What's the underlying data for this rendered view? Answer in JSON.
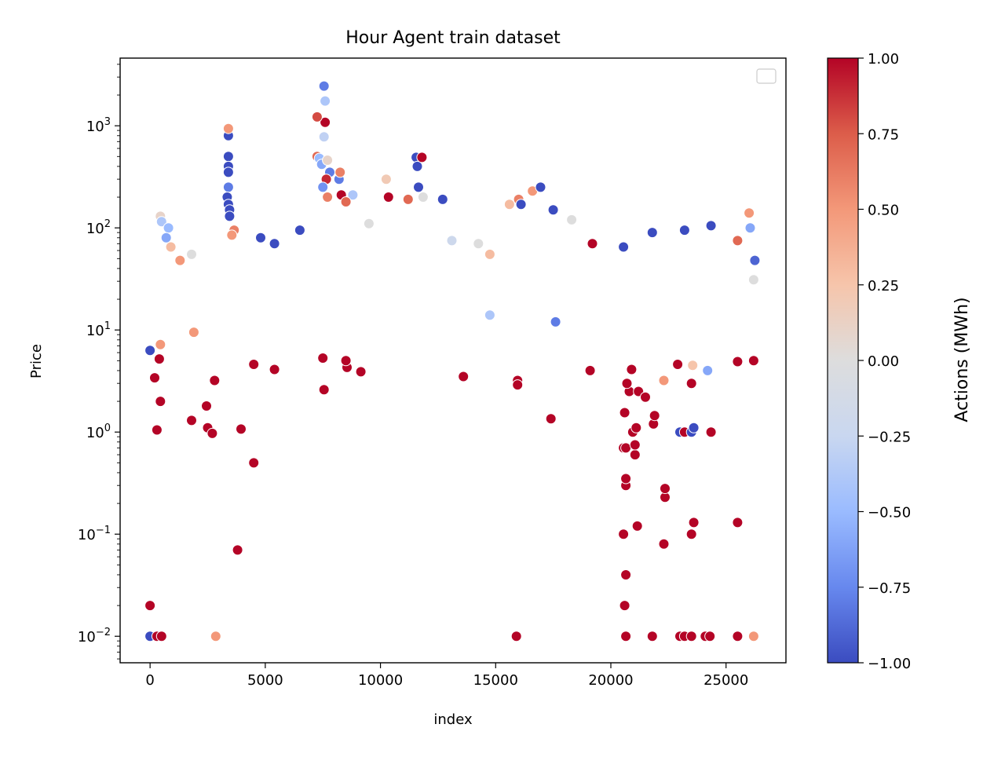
{
  "chart_data": {
    "type": "scatter",
    "title": "Hour Agent train dataset",
    "xlabel": "index",
    "ylabel": "Price",
    "yscale": "log",
    "xlim": [
      -1300,
      27600
    ],
    "ylim": [
      0.0055,
      4600
    ],
    "xticks": [
      0,
      5000,
      10000,
      15000,
      20000,
      25000
    ],
    "xtick_labels": [
      "0",
      "5000",
      "10000",
      "15000",
      "20000",
      "25000"
    ],
    "yticks": [
      0.01,
      0.1,
      1,
      10,
      100,
      1000
    ],
    "ytick_labels": [
      {
        "base": "10",
        "exp": "−2"
      },
      {
        "base": "10",
        "exp": "−1"
      },
      {
        "base": "10",
        "exp": "0"
      },
      {
        "base": "10",
        "exp": "1"
      },
      {
        "base": "10",
        "exp": "2"
      },
      {
        "base": "10",
        "exp": "3"
      }
    ],
    "grid": false,
    "legend": {
      "position": "top-right",
      "entries": []
    },
    "colorbar": {
      "label": "Actions (MWh)",
      "colormap": "coolwarm",
      "range": [
        -1,
        1
      ],
      "ticks": [
        -1,
        -0.75,
        -0.5,
        -0.25,
        0,
        0.25,
        0.5,
        0.75,
        1
      ],
      "tick_labels": [
        "−1.00",
        "−0.75",
        "−0.50",
        "−0.25",
        "0.00",
        "0.25",
        "0.50",
        "0.75",
        "1.00"
      ],
      "colors": [
        "#3b4cc0",
        "#6788ee",
        "#9abbff",
        "#c9d7f0",
        "#dddddd",
        "#f6c5ab",
        "#f39879",
        "#dc5d4a",
        "#b40426"
      ]
    },
    "points": [
      {
        "x": 0,
        "y": 0.01,
        "c": -1
      },
      {
        "x": 0,
        "y": 0.02,
        "c": 1
      },
      {
        "x": 300,
        "y": 0.01,
        "c": 1
      },
      {
        "x": 500,
        "y": 0.01,
        "c": 1
      },
      {
        "x": 2850,
        "y": 0.01,
        "c": 0.5
      },
      {
        "x": 15900,
        "y": 0.01,
        "c": 1
      },
      {
        "x": 20600,
        "y": 0.02,
        "c": 1
      },
      {
        "x": 20650,
        "y": 0.01,
        "c": 1
      },
      {
        "x": 21800,
        "y": 0.01,
        "c": 1
      },
      {
        "x": 23000,
        "y": 0.01,
        "c": 1
      },
      {
        "x": 23200,
        "y": 0.01,
        "c": 1
      },
      {
        "x": 23500,
        "y": 0.01,
        "c": 1
      },
      {
        "x": 24100,
        "y": 0.01,
        "c": 1
      },
      {
        "x": 24300,
        "y": 0.01,
        "c": 1
      },
      {
        "x": 25500,
        "y": 0.01,
        "c": 1
      },
      {
        "x": 26200,
        "y": 0.01,
        "c": 0.5
      },
      {
        "x": 20650,
        "y": 0.04,
        "c": 1
      },
      {
        "x": 3800,
        "y": 0.07,
        "c": 1
      },
      {
        "x": 20550,
        "y": 0.1,
        "c": 1
      },
      {
        "x": 22300,
        "y": 0.08,
        "c": 1
      },
      {
        "x": 23500,
        "y": 0.1,
        "c": 1
      },
      {
        "x": 21150,
        "y": 0.12,
        "c": 1
      },
      {
        "x": 23600,
        "y": 0.13,
        "c": 1
      },
      {
        "x": 25500,
        "y": 0.13,
        "c": 1
      },
      {
        "x": 22350,
        "y": 0.23,
        "c": 1
      },
      {
        "x": 22350,
        "y": 0.28,
        "c": 1
      },
      {
        "x": 20650,
        "y": 0.3,
        "c": 1
      },
      {
        "x": 20650,
        "y": 0.35,
        "c": 1
      },
      {
        "x": 4500,
        "y": 0.5,
        "c": 1
      },
      {
        "x": 20550,
        "y": 0.7,
        "c": 1
      },
      {
        "x": 20650,
        "y": 0.7,
        "c": 1
      },
      {
        "x": 21050,
        "y": 0.6,
        "c": 1
      },
      {
        "x": 21050,
        "y": 0.75,
        "c": 1
      },
      {
        "x": 300,
        "y": 1.05,
        "c": 1
      },
      {
        "x": 1800,
        "y": 1.3,
        "c": 1
      },
      {
        "x": 2500,
        "y": 1.1,
        "c": 1
      },
      {
        "x": 2700,
        "y": 0.97,
        "c": 1
      },
      {
        "x": 3950,
        "y": 1.07,
        "c": 1
      },
      {
        "x": 20950,
        "y": 1.0,
        "c": 1
      },
      {
        "x": 21100,
        "y": 1.1,
        "c": 1
      },
      {
        "x": 21850,
        "y": 1.2,
        "c": 1
      },
      {
        "x": 23000,
        "y": 1.0,
        "c": -1
      },
      {
        "x": 23200,
        "y": 1.0,
        "c": 1
      },
      {
        "x": 23500,
        "y": 1.0,
        "c": -1
      },
      {
        "x": 23600,
        "y": 1.1,
        "c": -1
      },
      {
        "x": 24350,
        "y": 1.0,
        "c": 1
      },
      {
        "x": 20600,
        "y": 1.55,
        "c": 1
      },
      {
        "x": 21900,
        "y": 1.45,
        "c": 1
      },
      {
        "x": 2450,
        "y": 1.8,
        "c": 1
      },
      {
        "x": 450,
        "y": 2.0,
        "c": 1
      },
      {
        "x": 200,
        "y": 3.4,
        "c": 1
      },
      {
        "x": 2800,
        "y": 3.2,
        "c": 1
      },
      {
        "x": 7550,
        "y": 2.6,
        "c": 1
      },
      {
        "x": 13600,
        "y": 3.5,
        "c": 1
      },
      {
        "x": 15950,
        "y": 3.2,
        "c": 1
      },
      {
        "x": 15950,
        "y": 2.9,
        "c": 1
      },
      {
        "x": 17400,
        "y": 1.35,
        "c": 1
      },
      {
        "x": 20800,
        "y": 2.5,
        "c": 1
      },
      {
        "x": 21200,
        "y": 2.5,
        "c": 1
      },
      {
        "x": 21500,
        "y": 2.2,
        "c": 1
      },
      {
        "x": 20700,
        "y": 3.0,
        "c": 1
      },
      {
        "x": 22300,
        "y": 3.2,
        "c": 0.5
      },
      {
        "x": 23500,
        "y": 3.0,
        "c": 1
      },
      {
        "x": 7500,
        "y": 5.3,
        "c": 1
      },
      {
        "x": 8550,
        "y": 4.3,
        "c": 1
      },
      {
        "x": 9150,
        "y": 3.9,
        "c": 1
      },
      {
        "x": 5400,
        "y": 4.1,
        "c": 1
      },
      {
        "x": 4500,
        "y": 4.6,
        "c": 1
      },
      {
        "x": 19100,
        "y": 4.0,
        "c": 1
      },
      {
        "x": 23550,
        "y": 4.5,
        "c": 0.25
      },
      {
        "x": 24200,
        "y": 4.0,
        "c": -0.6
      },
      {
        "x": 25500,
        "y": 4.9,
        "c": 1
      },
      {
        "x": 26200,
        "y": 5.0,
        "c": 1
      },
      {
        "x": 22900,
        "y": 4.6,
        "c": 1
      },
      {
        "x": 20900,
        "y": 4.1,
        "c": 1
      },
      {
        "x": 0,
        "y": 6.3,
        "c": -1
      },
      {
        "x": 400,
        "y": 5.2,
        "c": 1
      },
      {
        "x": 8500,
        "y": 5.0,
        "c": 1
      },
      {
        "x": 14750,
        "y": 14,
        "c": -0.4
      },
      {
        "x": 17600,
        "y": 12,
        "c": -0.8
      },
      {
        "x": 450,
        "y": 7.2,
        "c": 0.5
      },
      {
        "x": 3400,
        "y": 800,
        "c": -1
      },
      {
        "x": 3400,
        "y": 500,
        "c": -1
      },
      {
        "x": 3400,
        "y": 400,
        "c": -1
      },
      {
        "x": 3400,
        "y": 350,
        "c": -1
      },
      {
        "x": 3400,
        "y": 250,
        "c": -0.8
      },
      {
        "x": 3350,
        "y": 200,
        "c": -1
      },
      {
        "x": 3400,
        "y": 170,
        "c": -1
      },
      {
        "x": 3450,
        "y": 150,
        "c": -1
      },
      {
        "x": 3450,
        "y": 130,
        "c": -1
      },
      {
        "x": 3400,
        "y": 940,
        "c": 0.5
      },
      {
        "x": 3650,
        "y": 95,
        "c": 0.6
      },
      {
        "x": 3550,
        "y": 85,
        "c": 0.5
      },
      {
        "x": 7550,
        "y": 2450,
        "c": -0.8
      },
      {
        "x": 7600,
        "y": 1750,
        "c": -0.4
      },
      {
        "x": 7600,
        "y": 1080,
        "c": 1
      },
      {
        "x": 7250,
        "y": 1220,
        "c": 0.8
      },
      {
        "x": 7550,
        "y": 780,
        "c": -0.3
      },
      {
        "x": 7250,
        "y": 500,
        "c": 0.7
      },
      {
        "x": 7350,
        "y": 480,
        "c": -0.5
      },
      {
        "x": 7450,
        "y": 420,
        "c": -0.6
      },
      {
        "x": 7700,
        "y": 460,
        "c": 0.1
      },
      {
        "x": 7800,
        "y": 350,
        "c": -0.8
      },
      {
        "x": 7650,
        "y": 300,
        "c": 0.9
      },
      {
        "x": 7500,
        "y": 250,
        "c": -0.7
      },
      {
        "x": 7700,
        "y": 200,
        "c": 0.6
      },
      {
        "x": 8200,
        "y": 300,
        "c": -0.8
      },
      {
        "x": 8250,
        "y": 350,
        "c": 0.6
      },
      {
        "x": 8300,
        "y": 210,
        "c": 1
      },
      {
        "x": 8800,
        "y": 210,
        "c": -0.4
      },
      {
        "x": 8500,
        "y": 180,
        "c": 0.7
      },
      {
        "x": 10250,
        "y": 300,
        "c": 0.2
      },
      {
        "x": 10350,
        "y": 200,
        "c": 1
      },
      {
        "x": 11550,
        "y": 490,
        "c": -1
      },
      {
        "x": 11600,
        "y": 400,
        "c": -1
      },
      {
        "x": 11800,
        "y": 490,
        "c": 1
      },
      {
        "x": 11650,
        "y": 250,
        "c": -1
      },
      {
        "x": 11850,
        "y": 200,
        "c": 0.0
      },
      {
        "x": 11200,
        "y": 190,
        "c": 0.7
      },
      {
        "x": 12700,
        "y": 190,
        "c": -1
      },
      {
        "x": 16000,
        "y": 190,
        "c": 0.6
      },
      {
        "x": 16600,
        "y": 230,
        "c": 0.5
      },
      {
        "x": 16950,
        "y": 250,
        "c": -1
      },
      {
        "x": 16100,
        "y": 170,
        "c": -1
      },
      {
        "x": 15600,
        "y": 170,
        "c": 0.3
      },
      {
        "x": 17500,
        "y": 150,
        "c": -1
      },
      {
        "x": 18300,
        "y": 120,
        "c": 0.0
      },
      {
        "x": 19200,
        "y": 70,
        "c": 1
      },
      {
        "x": 20550,
        "y": 65,
        "c": -1
      },
      {
        "x": 21800,
        "y": 90,
        "c": -1
      },
      {
        "x": 23200,
        "y": 95,
        "c": -1
      },
      {
        "x": 24350,
        "y": 105,
        "c": -1
      },
      {
        "x": 26000,
        "y": 140,
        "c": 0.5
      },
      {
        "x": 26050,
        "y": 100,
        "c": -0.6
      },
      {
        "x": 25500,
        "y": 75,
        "c": 0.7
      },
      {
        "x": 450,
        "y": 130,
        "c": 0.1
      },
      {
        "x": 500,
        "y": 115,
        "c": -0.4
      },
      {
        "x": 800,
        "y": 100,
        "c": -0.5
      },
      {
        "x": 700,
        "y": 80,
        "c": -0.6
      },
      {
        "x": 900,
        "y": 65,
        "c": 0.3
      },
      {
        "x": 1300,
        "y": 48,
        "c": 0.5
      },
      {
        "x": 1800,
        "y": 55,
        "c": 0.0
      },
      {
        "x": 4800,
        "y": 80,
        "c": -1
      },
      {
        "x": 5400,
        "y": 70,
        "c": -1
      },
      {
        "x": 6500,
        "y": 95,
        "c": -1
      },
      {
        "x": 9500,
        "y": 110,
        "c": 0.0
      },
      {
        "x": 14250,
        "y": 70,
        "c": 0.0
      },
      {
        "x": 14750,
        "y": 55,
        "c": 0.3
      },
      {
        "x": 13100,
        "y": 75,
        "c": -0.2
      },
      {
        "x": 1900,
        "y": 9.5,
        "c": 0.5
      },
      {
        "x": 26200,
        "y": 31,
        "c": 0.0
      },
      {
        "x": 26250,
        "y": 48,
        "c": -0.9
      }
    ]
  }
}
